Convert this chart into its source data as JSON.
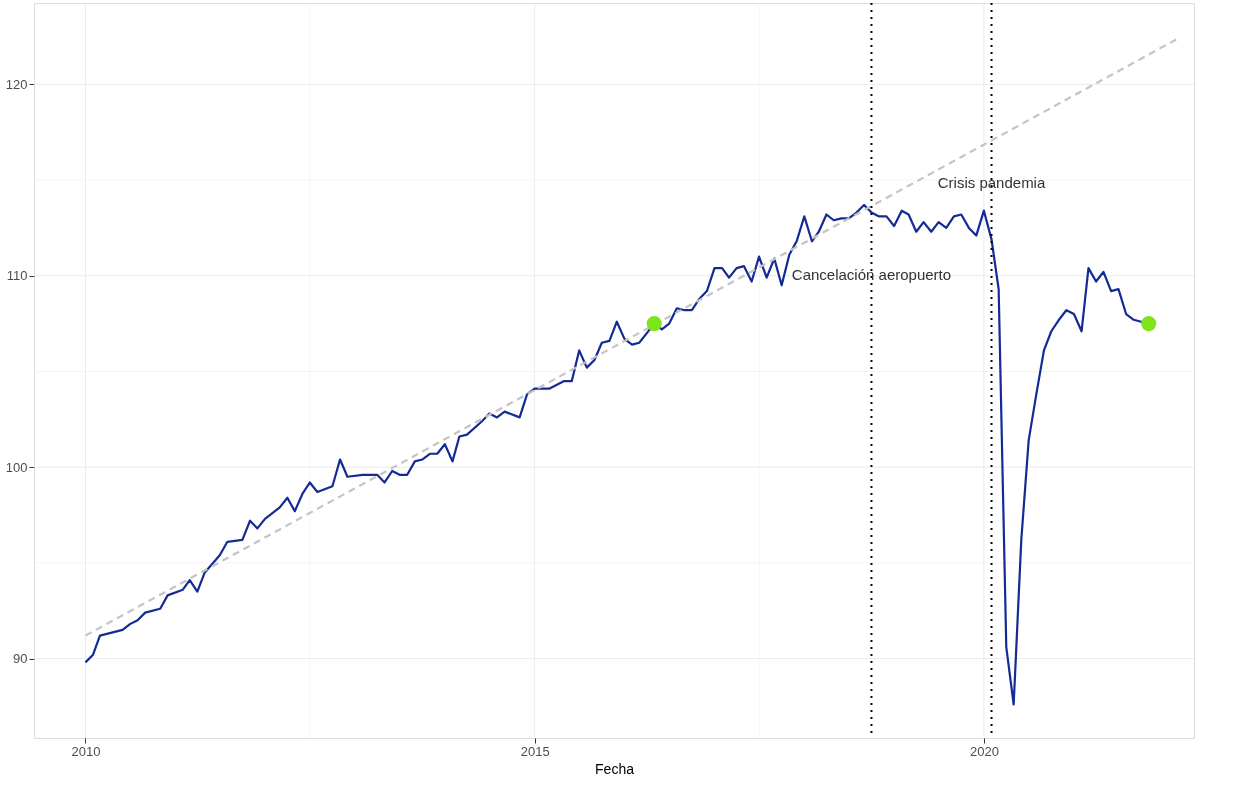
{
  "chart_data": {
    "type": "line",
    "xlabel": "Fecha",
    "x": [
      "2010-01",
      "2010-02",
      "2010-03",
      "2010-06",
      "2010-07",
      "2010-08",
      "2010-09",
      "2010-11",
      "2010-12",
      "2011-02",
      "2011-03",
      "2011-04",
      "2011-05",
      "2011-07",
      "2011-08",
      "2011-10",
      "2011-11",
      "2011-12",
      "2012-01",
      "2012-03",
      "2012-04",
      "2012-05",
      "2012-06",
      "2012-07",
      "2012-08",
      "2012-10",
      "2012-11",
      "2012-12",
      "2013-02",
      "2013-04",
      "2013-05",
      "2013-06",
      "2013-07",
      "2013-08",
      "2013-09",
      "2013-10",
      "2013-11",
      "2013-12",
      "2014-01",
      "2014-02",
      "2014-03",
      "2014-04",
      "2014-06",
      "2014-07",
      "2014-08",
      "2014-09",
      "2014-11",
      "2014-12",
      "2015-01",
      "2015-03",
      "2015-05",
      "2015-06",
      "2015-07",
      "2015-08",
      "2015-09",
      "2015-10",
      "2015-11",
      "2015-12",
      "2016-01",
      "2016-02",
      "2016-03",
      "2016-04",
      "2016-05",
      "2016-06",
      "2016-07",
      "2016-08",
      "2016-09",
      "2016-10",
      "2016-11",
      "2016-12",
      "2017-01",
      "2017-02",
      "2017-03",
      "2017-04",
      "2017-05",
      "2017-06",
      "2017-07",
      "2017-08",
      "2017-09",
      "2017-10",
      "2017-11",
      "2017-12",
      "2018-01",
      "2018-02",
      "2018-03",
      "2018-04",
      "2018-05",
      "2018-06",
      "2018-07",
      "2018-08",
      "2018-09",
      "2018-10",
      "2018-11",
      "2018-12",
      "2019-01",
      "2019-02",
      "2019-03",
      "2019-04",
      "2019-05",
      "2019-06",
      "2019-07",
      "2019-08",
      "2019-09",
      "2019-10",
      "2019-11",
      "2019-12",
      "2020-01",
      "2020-02",
      "2020-03",
      "2020-04",
      "2020-05",
      "2020-06",
      "2020-07",
      "2020-08",
      "2020-09",
      "2020-10",
      "2020-11",
      "2020-12",
      "2021-01",
      "2021-02",
      "2021-03",
      "2021-04",
      "2021-05",
      "2021-06",
      "2021-07",
      "2021-08",
      "2021-09",
      "2021-10",
      "2021-11"
    ],
    "series": [
      {
        "color": "#142a94",
        "values": [
          89.8,
          90.2,
          91.2,
          91.5,
          91.8,
          92.0,
          92.4,
          92.6,
          93.3,
          93.6,
          94.1,
          93.5,
          94.5,
          95.4,
          96.1,
          96.2,
          97.2,
          96.8,
          97.3,
          97.9,
          98.4,
          97.7,
          98.6,
          99.2,
          98.7,
          99.0,
          100.4,
          99.5,
          99.6,
          99.6,
          99.2,
          99.8,
          99.6,
          99.6,
          100.3,
          100.4,
          100.7,
          100.7,
          101.2,
          100.3,
          101.6,
          101.7,
          102.4,
          102.8,
          102.6,
          102.9,
          102.6,
          103.8,
          104.1,
          104.1,
          104.5,
          104.5,
          106.1,
          105.2,
          105.6,
          106.5,
          106.6,
          107.6,
          106.7,
          106.4,
          106.5,
          107.0,
          107.5,
          107.2,
          107.5,
          108.3,
          108.2,
          108.2,
          108.8,
          109.2,
          110.4,
          110.4,
          109.9,
          110.4,
          110.5,
          109.7,
          111.0,
          109.9,
          110.9,
          109.5,
          111.1,
          111.8,
          113.1,
          111.8,
          112.3,
          113.2,
          112.9,
          113.0,
          113.0,
          113.3,
          113.7,
          113.3,
          113.1,
          113.1,
          112.6,
          113.4,
          113.2,
          112.3,
          112.8,
          112.3,
          112.8,
          112.5,
          113.1,
          113.2,
          112.5,
          112.1,
          113.4,
          111.9,
          109.3,
          90.6,
          87.6,
          96.2,
          101.4,
          103.8,
          106.1,
          107.1,
          107.7,
          108.2,
          108.0,
          107.1,
          110.4,
          109.7,
          110.2,
          109.2,
          109.3,
          108.0,
          107.7,
          107.6,
          107.5
        ]
      },
      {
        "type": "line",
        "color": "#c4c4c4",
        "line_style": "dashed",
        "x": [
          "2010-01",
          "2022-03"
        ],
        "values": [
          91.2,
          122.4
        ]
      },
      {
        "type": "scatter",
        "color": "#7ee51a",
        "marker": "circle",
        "x": [
          "2016-05",
          "2021-11"
        ],
        "values": [
          107.5,
          107.5
        ]
      }
    ],
    "ref_lines": [
      {
        "axis": "x",
        "value": "2018-10",
        "label": "Cancelación aeropuerto",
        "color": "#000000",
        "line_style": "dotted"
      },
      {
        "axis": "x",
        "value": "2020-02",
        "label": "Crisis pandemia",
        "color": "#000000",
        "line_style": "dotted"
      }
    ],
    "xlim": [
      "2009-06-06",
      "2022-05-04"
    ],
    "xticks": [
      "2010",
      "2015",
      "2020"
    ],
    "ylim": [
      85.85,
      124.25
    ],
    "yticks": [
      90,
      100,
      110,
      120
    ],
    "grid": true
  }
}
